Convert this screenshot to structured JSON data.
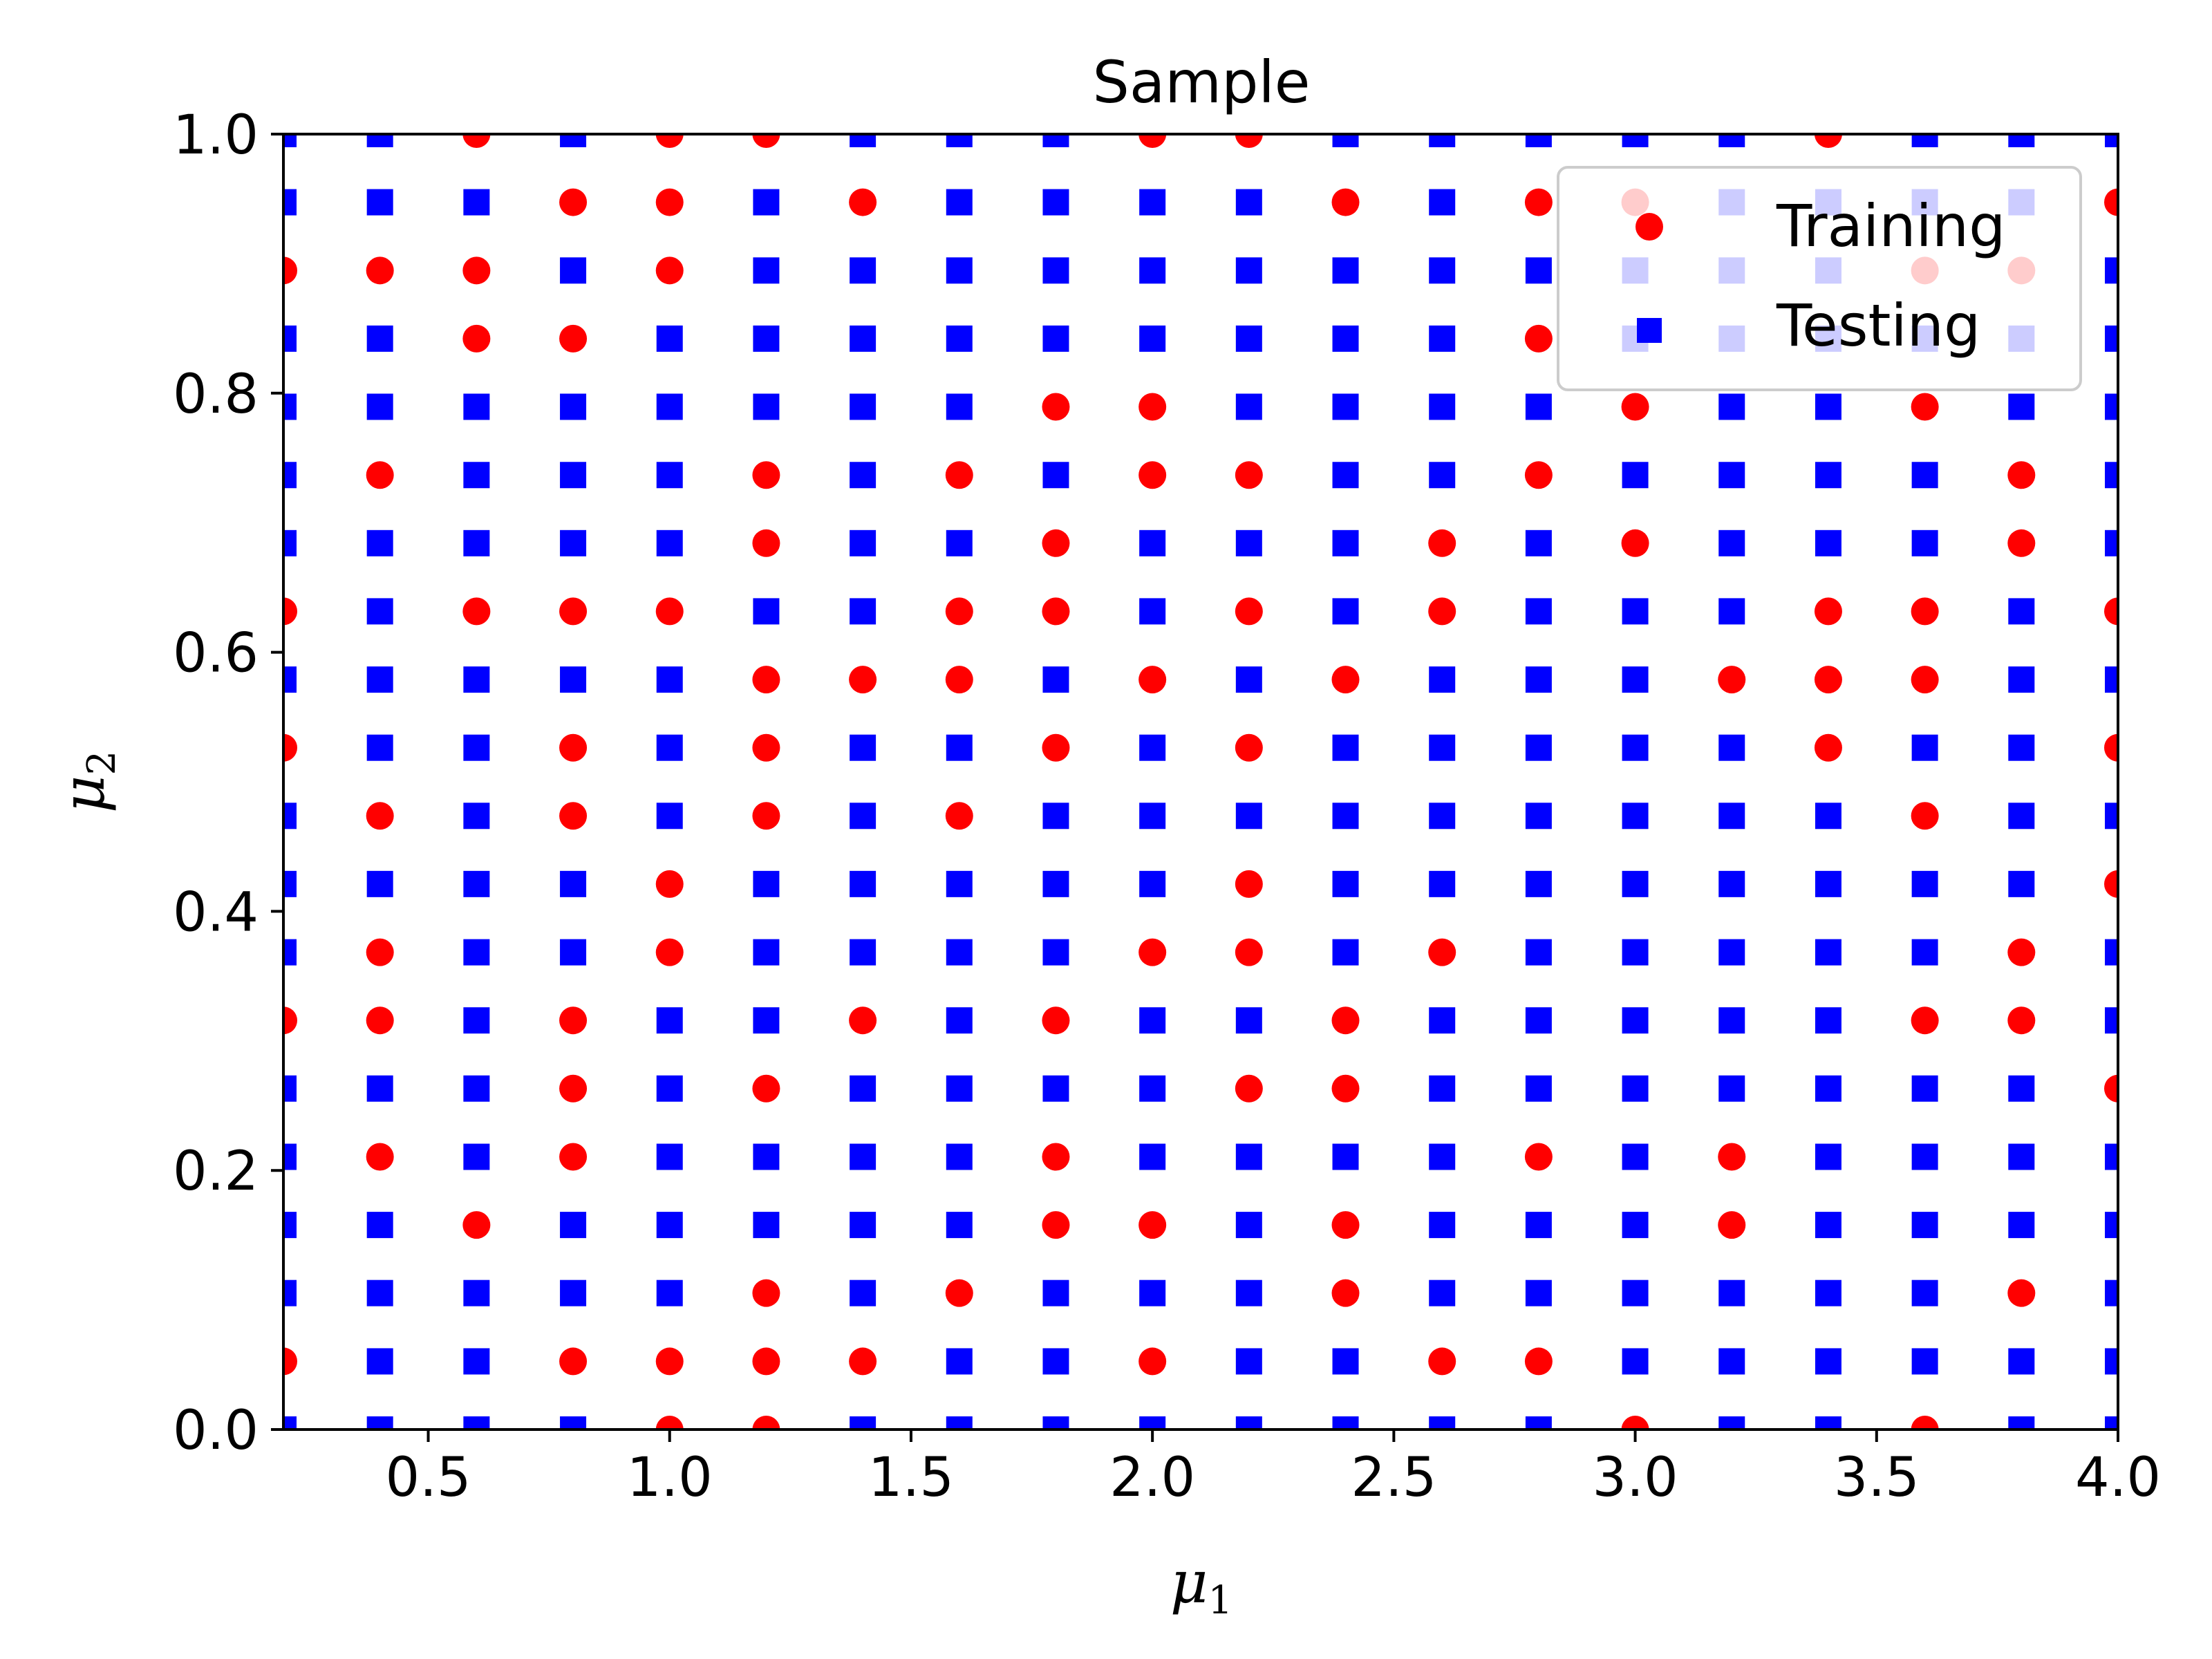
{
  "chart_data": {
    "type": "scatter",
    "title": "Sample",
    "xlabel": "μ1",
    "ylabel": "μ2",
    "xlim": [
      0.2,
      4.0
    ],
    "ylim": [
      0.0,
      1.0
    ],
    "x_ticks": [
      "0.5",
      "1.0",
      "1.5",
      "2.0",
      "2.5",
      "3.0",
      "3.5",
      "4.0"
    ],
    "y_ticks": [
      "0.0",
      "0.2",
      "0.4",
      "0.6",
      "0.8",
      "1.0"
    ],
    "grid": false,
    "legend_position": "top-right",
    "x_values": [
      0.2,
      0.4,
      0.6,
      0.8,
      1.0,
      1.2,
      1.4,
      1.6,
      1.8,
      2.0,
      2.2,
      2.4,
      2.6,
      2.8,
      3.0,
      3.2,
      3.4,
      3.6,
      3.8,
      4.0
    ],
    "y_values": [
      0.0,
      0.0526,
      0.1053,
      0.1579,
      0.2105,
      0.2632,
      0.3158,
      0.3684,
      0.4211,
      0.4737,
      0.5263,
      0.5789,
      0.6316,
      0.6842,
      0.7368,
      0.7895,
      0.8421,
      0.8947,
      0.9474,
      1.0
    ],
    "series": [
      {
        "name": "Training",
        "marker": "circle",
        "color": "#ff0000",
        "points": [
          [
            0.2,
            0.0526
          ],
          [
            0.2,
            0.3158
          ],
          [
            0.2,
            0.5263
          ],
          [
            0.2,
            0.6316
          ],
          [
            0.2,
            0.8947
          ],
          [
            0.4,
            0.2105
          ],
          [
            0.4,
            0.3158
          ],
          [
            0.4,
            0.3684
          ],
          [
            0.4,
            0.4737
          ],
          [
            0.4,
            0.7368
          ],
          [
            0.4,
            0.8947
          ],
          [
            0.6,
            0.1579
          ],
          [
            0.6,
            0.6316
          ],
          [
            0.6,
            0.8421
          ],
          [
            0.6,
            0.8947
          ],
          [
            0.6,
            1.0
          ],
          [
            0.8,
            0.0526
          ],
          [
            0.8,
            0.2105
          ],
          [
            0.8,
            0.2632
          ],
          [
            0.8,
            0.3158
          ],
          [
            0.8,
            0.4737
          ],
          [
            0.8,
            0.5263
          ],
          [
            0.8,
            0.6316
          ],
          [
            0.8,
            0.8421
          ],
          [
            0.8,
            0.9474
          ],
          [
            1.0,
            0.0
          ],
          [
            1.0,
            0.0526
          ],
          [
            1.0,
            0.3684
          ],
          [
            1.0,
            0.4211
          ],
          [
            1.0,
            0.6316
          ],
          [
            1.0,
            0.8947
          ],
          [
            1.0,
            0.9474
          ],
          [
            1.0,
            1.0
          ],
          [
            1.2,
            0.0
          ],
          [
            1.2,
            0.0526
          ],
          [
            1.2,
            0.1053
          ],
          [
            1.2,
            0.2632
          ],
          [
            1.2,
            0.4737
          ],
          [
            1.2,
            0.5263
          ],
          [
            1.2,
            0.5789
          ],
          [
            1.2,
            0.6842
          ],
          [
            1.2,
            0.7368
          ],
          [
            1.2,
            1.0
          ],
          [
            1.4,
            0.0526
          ],
          [
            1.4,
            0.3158
          ],
          [
            1.4,
            0.5789
          ],
          [
            1.4,
            0.9474
          ],
          [
            1.6,
            0.1053
          ],
          [
            1.6,
            0.4737
          ],
          [
            1.6,
            0.5789
          ],
          [
            1.6,
            0.6316
          ],
          [
            1.6,
            0.7368
          ],
          [
            1.8,
            0.1579
          ],
          [
            1.8,
            0.2105
          ],
          [
            1.8,
            0.3158
          ],
          [
            1.8,
            0.5263
          ],
          [
            1.8,
            0.6316
          ],
          [
            1.8,
            0.6842
          ],
          [
            1.8,
            0.7895
          ],
          [
            2.0,
            0.0526
          ],
          [
            2.0,
            0.1579
          ],
          [
            2.0,
            0.3684
          ],
          [
            2.0,
            0.5789
          ],
          [
            2.0,
            0.7368
          ],
          [
            2.0,
            0.7895
          ],
          [
            2.0,
            1.0
          ],
          [
            2.2,
            0.2632
          ],
          [
            2.2,
            0.3684
          ],
          [
            2.2,
            0.4211
          ],
          [
            2.2,
            0.5263
          ],
          [
            2.2,
            0.6316
          ],
          [
            2.2,
            0.7368
          ],
          [
            2.2,
            1.0
          ],
          [
            2.4,
            0.1053
          ],
          [
            2.4,
            0.1579
          ],
          [
            2.4,
            0.2632
          ],
          [
            2.4,
            0.3158
          ],
          [
            2.4,
            0.5789
          ],
          [
            2.4,
            0.9474
          ],
          [
            2.6,
            0.0526
          ],
          [
            2.6,
            0.3684
          ],
          [
            2.6,
            0.6316
          ],
          [
            2.6,
            0.6842
          ],
          [
            2.8,
            0.0526
          ],
          [
            2.8,
            0.2105
          ],
          [
            2.8,
            0.7368
          ],
          [
            2.8,
            0.8421
          ],
          [
            2.8,
            0.9474
          ],
          [
            3.0,
            0.0
          ],
          [
            3.0,
            0.6842
          ],
          [
            3.0,
            0.7895
          ],
          [
            3.0,
            0.9474
          ],
          [
            3.2,
            0.1579
          ],
          [
            3.2,
            0.2105
          ],
          [
            3.2,
            0.5789
          ],
          [
            3.4,
            0.5263
          ],
          [
            3.4,
            0.5789
          ],
          [
            3.4,
            0.6316
          ],
          [
            3.4,
            1.0
          ],
          [
            3.6,
            0.0
          ],
          [
            3.6,
            0.3158
          ],
          [
            3.6,
            0.4737
          ],
          [
            3.6,
            0.5789
          ],
          [
            3.6,
            0.6316
          ],
          [
            3.6,
            0.7895
          ],
          [
            3.6,
            0.8947
          ],
          [
            3.8,
            0.1053
          ],
          [
            3.8,
            0.3158
          ],
          [
            3.8,
            0.3684
          ],
          [
            3.8,
            0.6842
          ],
          [
            3.8,
            0.7368
          ],
          [
            3.8,
            0.8947
          ],
          [
            4.0,
            0.2632
          ],
          [
            4.0,
            0.4211
          ],
          [
            4.0,
            0.5263
          ],
          [
            4.0,
            0.6316
          ],
          [
            4.0,
            0.9474
          ]
        ]
      },
      {
        "name": "Testing",
        "marker": "square",
        "color": "#0000ff",
        "points": "all remaining grid points (x_values × y_values) not in Training"
      }
    ]
  },
  "colors": {
    "training": "#ff0000",
    "testing": "#0000ff",
    "axes": "#000000",
    "background": "#ffffff"
  }
}
